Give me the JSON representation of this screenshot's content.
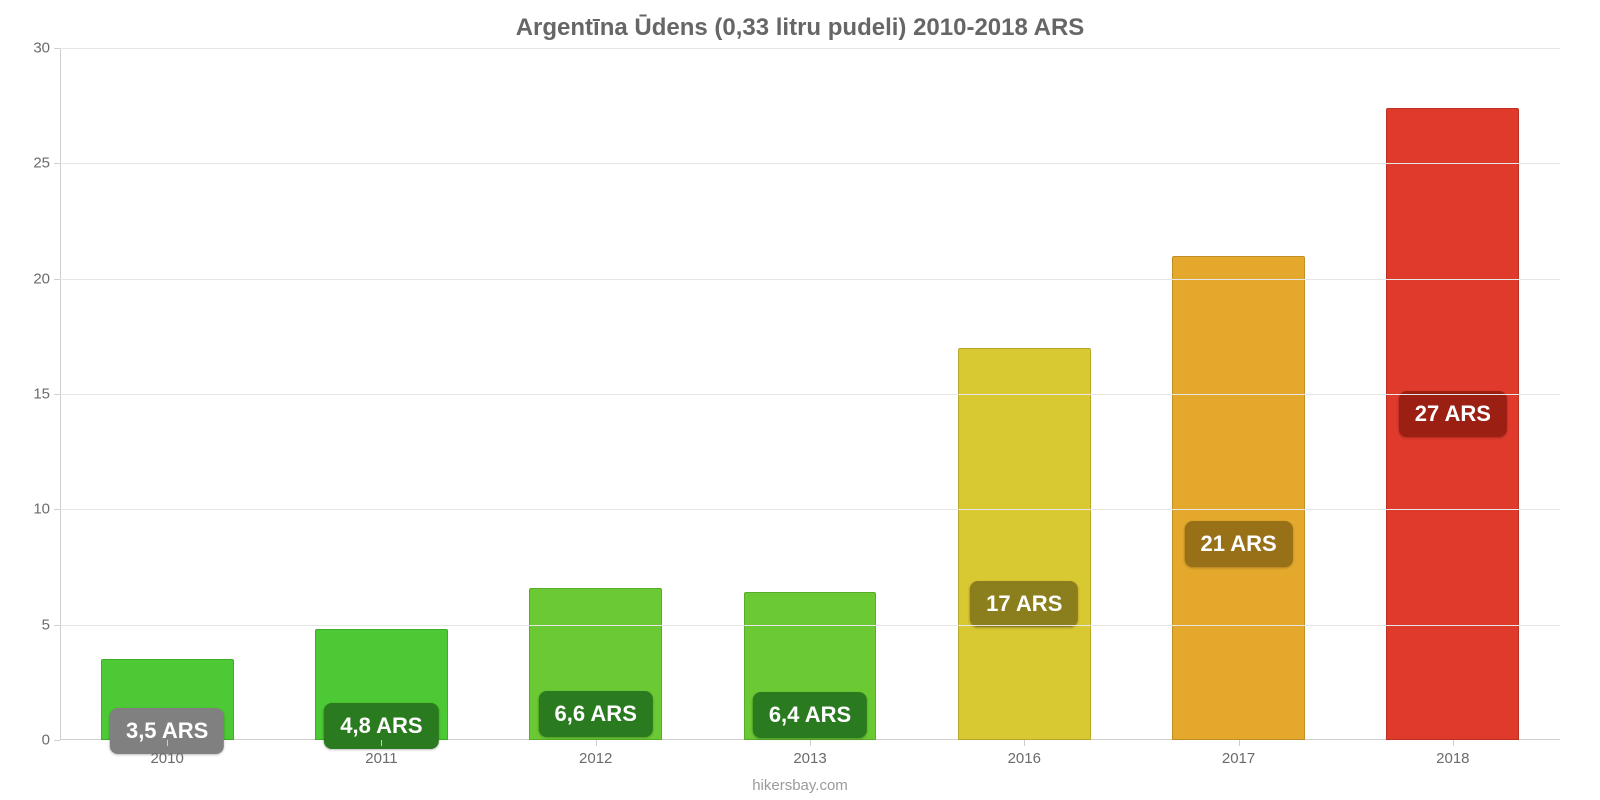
{
  "chart": {
    "type": "bar",
    "title": "Argentīna Ūdens (0,33 litru pudeli) 2010-2018 ARS",
    "title_fontsize": 24,
    "title_color": "#666666",
    "source": "hikersbay.com",
    "source_fontsize": 15,
    "source_color": "#9b9b9b",
    "background_color": "#ffffff",
    "grid_color": "#e6e6e6",
    "axis_color": "#cfcfcf",
    "tick_label_color": "#6b6b6b",
    "tick_fontsize": 15,
    "ylim": [
      0,
      30
    ],
    "ytick_step": 5,
    "bar_width_ratio": 0.62,
    "label_fontsize": 22,
    "label_text_color": "#ffffff",
    "label_border_radius": 8,
    "categories": [
      "2010",
      "2011",
      "2012",
      "2013",
      "2016",
      "2017",
      "2018"
    ],
    "values": [
      3.5,
      4.8,
      6.6,
      6.4,
      17,
      21,
      27.4
    ],
    "value_labels": [
      "3,5 ARS",
      "4,8 ARS",
      "6,6 ARS",
      "6,4 ARS",
      "17 ARS",
      "21 ARS",
      "27 ARS"
    ],
    "bar_colors": [
      "#4cc934",
      "#4cc934",
      "#6bc934",
      "#6bc934",
      "#d8c831",
      "#e3a82c",
      "#e03a2c"
    ],
    "bar_border_colors": [
      "#3fab2b",
      "#3fab2b",
      "#59ab2b",
      "#59ab2b",
      "#b6a928",
      "#c08e24",
      "#bd3024"
    ],
    "label_bg_colors": [
      "#808080",
      "#2a7a1f",
      "#2a7a1f",
      "#2a7a1f",
      "#8a7f1c",
      "#977018",
      "#9c1f14"
    ],
    "label_anchor_value": [
      3.0,
      3.5,
      5.0,
      5.0,
      10.4,
      12.1,
      15.5
    ]
  }
}
